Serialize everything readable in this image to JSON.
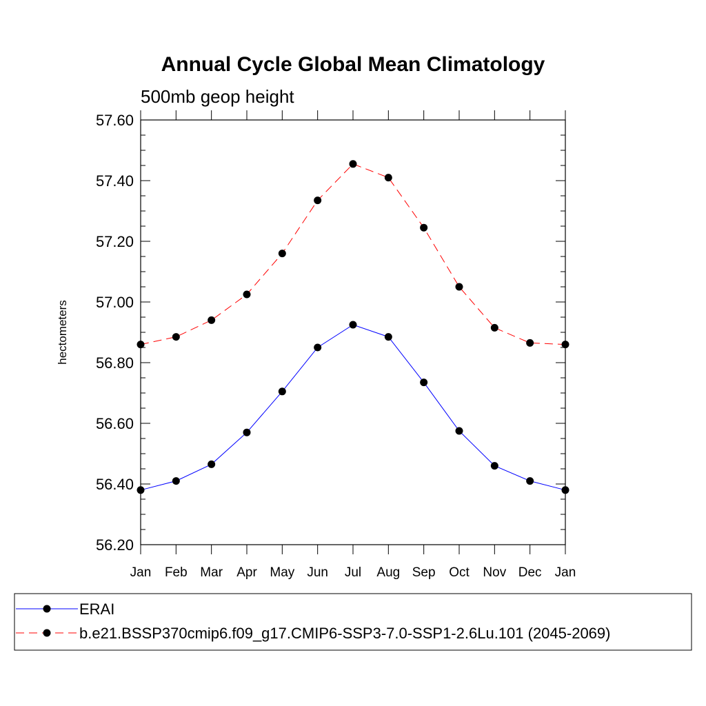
{
  "chart_data": {
    "type": "line",
    "title": "Annual Cycle Global Mean Climatology",
    "subtitle": "500mb geop height",
    "ylabel": "hectometers",
    "xlabel": "",
    "categories": [
      "Jan",
      "Feb",
      "Mar",
      "Apr",
      "May",
      "Jun",
      "Jul",
      "Aug",
      "Sep",
      "Oct",
      "Nov",
      "Dec",
      "Jan"
    ],
    "ylim": [
      56.2,
      57.6
    ],
    "yticks": [
      "56.20",
      "56.40",
      "56.60",
      "56.80",
      "57.00",
      "57.20",
      "57.40",
      "57.60"
    ],
    "series": [
      {
        "name": "ERAI",
        "color": "#0000ff",
        "dash": "solid",
        "values": [
          56.38,
          56.41,
          56.465,
          56.57,
          56.705,
          56.85,
          56.925,
          56.885,
          56.735,
          56.575,
          56.46,
          56.41,
          56.38
        ]
      },
      {
        "name": "b.e21.BSSP370cmip6.f09_g17.CMIP6-SSP3-7.0-SSP1-2.6Lu.101 (2045-2069)",
        "color": "#ff0000",
        "dash": "dashed",
        "values": [
          56.86,
          56.885,
          56.94,
          57.025,
          57.16,
          57.335,
          57.455,
          57.41,
          57.245,
          57.05,
          56.915,
          56.865,
          56.86
        ]
      }
    ],
    "grid": false,
    "legend_position": "bottom"
  }
}
